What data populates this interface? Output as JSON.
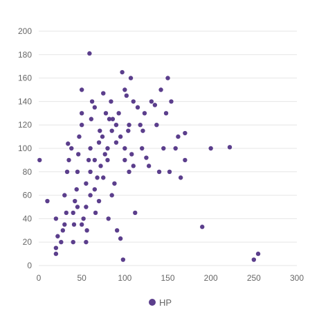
{
  "chart_data": {
    "type": "scatter",
    "title": "",
    "xlabel": "",
    "ylabel": "",
    "xlim": [
      0,
      300
    ],
    "ylim": [
      0,
      200
    ],
    "x_ticks": [
      "0",
      "50",
      "100",
      "150",
      "200",
      "250",
      "300"
    ],
    "y_ticks": [
      "0",
      "20",
      "40",
      "60",
      "80",
      "100",
      "120",
      "140",
      "160",
      "180",
      "200"
    ],
    "grid": "horizontal",
    "legend_position": "bottom",
    "series": [
      {
        "name": "HP",
        "color": "#5b3e8c",
        "points": [
          [
            1,
            90
          ],
          [
            10,
            55
          ],
          [
            20,
            10
          ],
          [
            20,
            15
          ],
          [
            22,
            25
          ],
          [
            20,
            40
          ],
          [
            26,
            20
          ],
          [
            28,
            30
          ],
          [
            30,
            35
          ],
          [
            32,
            45
          ],
          [
            30,
            60
          ],
          [
            33,
            80
          ],
          [
            35,
            90
          ],
          [
            34,
            104
          ],
          [
            38,
            100
          ],
          [
            40,
            20
          ],
          [
            41,
            35
          ],
          [
            42,
            55
          ],
          [
            44,
            65
          ],
          [
            45,
            80
          ],
          [
            46,
            95
          ],
          [
            47,
            110
          ],
          [
            50,
            150
          ],
          [
            50,
            120
          ],
          [
            50,
            130
          ],
          [
            52,
            40
          ],
          [
            55,
            20
          ],
          [
            56,
            30
          ],
          [
            58,
            90
          ],
          [
            60,
            100
          ],
          [
            59,
            181
          ],
          [
            60,
            60
          ],
          [
            61,
            125
          ],
          [
            62,
            140
          ],
          [
            65,
            135
          ],
          [
            66,
            45
          ],
          [
            68,
            75
          ],
          [
            70,
            105
          ],
          [
            71,
            115
          ],
          [
            72,
            85
          ],
          [
            74,
            110
          ],
          [
            75,
            147
          ],
          [
            77,
            95
          ],
          [
            78,
            130
          ],
          [
            80,
            90
          ],
          [
            81,
            40
          ],
          [
            82,
            125
          ],
          [
            84,
            140
          ],
          [
            85,
            60
          ],
          [
            86,
            125
          ],
          [
            88,
            70
          ],
          [
            90,
            105
          ],
          [
            91,
            30
          ],
          [
            93,
            130
          ],
          [
            95,
            23
          ],
          [
            97,
            165
          ],
          [
            98,
            5
          ],
          [
            100,
            100
          ],
          [
            100,
            150
          ],
          [
            102,
            145
          ],
          [
            104,
            115
          ],
          [
            105,
            80
          ],
          [
            107,
            160
          ],
          [
            108,
            95
          ],
          [
            110,
            140
          ],
          [
            112,
            45
          ],
          [
            115,
            135
          ],
          [
            118,
            120
          ],
          [
            120,
            100
          ],
          [
            121,
            115
          ],
          [
            123,
            130
          ],
          [
            125,
            92
          ],
          [
            128,
            85
          ],
          [
            131,
            140
          ],
          [
            135,
            137
          ],
          [
            137,
            120
          ],
          [
            140,
            80
          ],
          [
            142,
            150
          ],
          [
            145,
            100
          ],
          [
            148,
            130
          ],
          [
            150,
            160
          ],
          [
            152,
            80
          ],
          [
            154,
            140
          ],
          [
            159,
            100
          ],
          [
            162,
            110
          ],
          [
            165,
            75
          ],
          [
            170,
            113
          ],
          [
            170,
            90
          ],
          [
            190,
            33
          ],
          [
            200,
            100
          ],
          [
            222,
            101
          ],
          [
            250,
            5
          ],
          [
            255,
            10
          ],
          [
            55,
            70
          ],
          [
            60,
            80
          ],
          [
            65,
            65
          ],
          [
            70,
            55
          ],
          [
            75,
            75
          ],
          [
            80,
            100
          ],
          [
            85,
            115
          ],
          [
            90,
            120
          ],
          [
            95,
            110
          ],
          [
            100,
            90
          ],
          [
            105,
            120
          ],
          [
            110,
            85
          ],
          [
            55,
            50
          ],
          [
            45,
            50
          ],
          [
            40,
            45
          ],
          [
            50,
            35
          ],
          [
            65,
            90
          ]
        ]
      }
    ]
  }
}
